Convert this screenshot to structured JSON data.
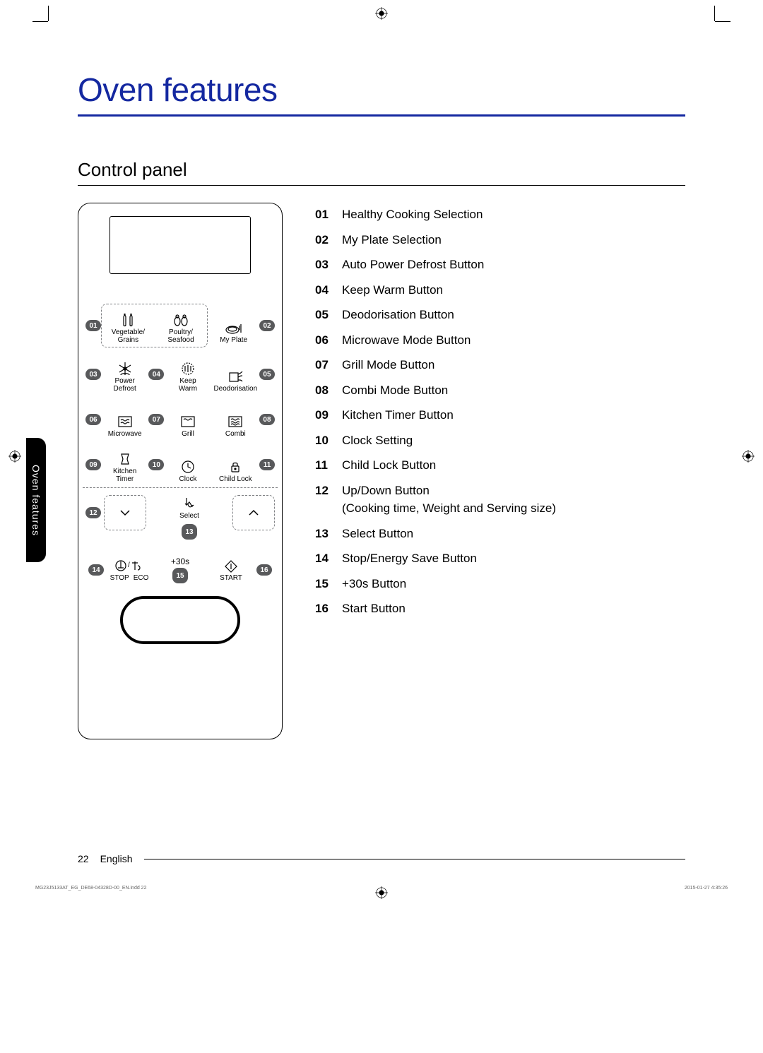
{
  "page": {
    "title": "Oven features",
    "section": "Control panel",
    "side_tab": "Oven features",
    "footer_page": "22",
    "footer_lang": "English",
    "indd": "MG23J5133AT_EG_DE68-04328D-00_EN.indd   22",
    "timestamp": "2015-01-27   4:35:26"
  },
  "panel": {
    "row1": {
      "left_badge": "01",
      "c1": "Vegetable/\nGrains",
      "c2": "Poultry/\nSeafood",
      "c3": "My Plate",
      "right_badge": "02"
    },
    "row2": {
      "left_badge": "03",
      "mid_badge": "04",
      "c1": "Power\nDefrost",
      "c2": "Keep\nWarm",
      "c3": "Deodorisation",
      "right_badge": "05"
    },
    "row3": {
      "left_badge": "06",
      "mid_badge": "07",
      "c1": "Microwave",
      "c2": "Grill",
      "c3": "Combi",
      "right_badge": "08"
    },
    "row4": {
      "left_badge": "09",
      "mid_badge": "10",
      "c1": "Kitchen\nTimer",
      "c2": "Clock",
      "c3": "Child Lock",
      "right_badge": "11"
    },
    "row5": {
      "left_badge": "12",
      "select": "Select",
      "select_badge": "13"
    },
    "row6": {
      "left_badge": "14",
      "c1a": "STOP",
      "c1b": "ECO",
      "c2": "+30s",
      "c2_badge": "15",
      "c3": "START",
      "right_badge": "16"
    }
  },
  "legend": [
    {
      "n": "01",
      "t": "Healthy Cooking Selection"
    },
    {
      "n": "02",
      "t": "My Plate Selection"
    },
    {
      "n": "03",
      "t": "Auto Power Defrost Button"
    },
    {
      "n": "04",
      "t": "Keep Warm Button"
    },
    {
      "n": "05",
      "t": "Deodorisation Button"
    },
    {
      "n": "06",
      "t": "Microwave Mode Button"
    },
    {
      "n": "07",
      "t": "Grill Mode Button"
    },
    {
      "n": "08",
      "t": "Combi Mode Button"
    },
    {
      "n": "09",
      "t": "Kitchen Timer Button"
    },
    {
      "n": "10",
      "t": "Clock Setting"
    },
    {
      "n": "11",
      "t": "Child Lock Button"
    },
    {
      "n": "12",
      "t": "Up/Down Button\n(Cooking time, Weight and Serving size)"
    },
    {
      "n": "13",
      "t": "Select Button"
    },
    {
      "n": "14",
      "t": "Stop/Energy Save Button"
    },
    {
      "n": "15",
      "t": "+30s Button"
    },
    {
      "n": "16",
      "t": "Start Button"
    }
  ],
  "colors": {
    "title": "#1428a0",
    "badge": "#58595b",
    "dotted": "#808285"
  }
}
